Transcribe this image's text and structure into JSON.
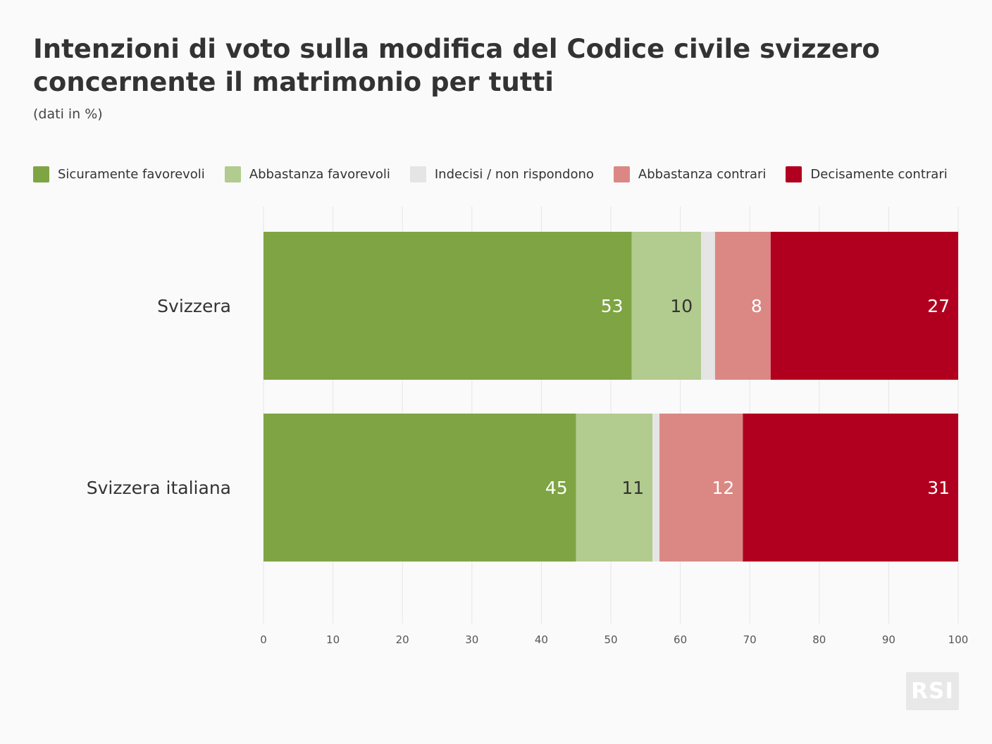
{
  "chart_data": {
    "type": "bar",
    "orientation": "horizontal",
    "stacked": true,
    "title": "Intenzioni di voto sulla modifica del Codice civile svizzero concernente il matrimonio per tutti",
    "subtitle": "(dati in %)",
    "categories": [
      "Svizzera",
      "Svizzera italiana"
    ],
    "series": [
      {
        "name": "Sicuramente favorevoli",
        "color": "#7fa443",
        "label_color": "#ffffff",
        "values": [
          53,
          45
        ],
        "labels": [
          "53",
          "45"
        ]
      },
      {
        "name": "Abbastanza favorevoli",
        "color": "#b2cb8e",
        "label_color": "#333333",
        "values": [
          10,
          11
        ],
        "labels": [
          "10",
          "11"
        ]
      },
      {
        "name": "Indecisi / non rispondono",
        "color": "#e5e5e5",
        "label_color": "#333333",
        "values": [
          2,
          1
        ],
        "labels": [
          "",
          ""
        ]
      },
      {
        "name": "Abbastanza contrari",
        "color": "#db8884",
        "label_color": "#ffffff",
        "values": [
          8,
          12
        ],
        "labels": [
          "8",
          "12"
        ]
      },
      {
        "name": "Decisamente contrari",
        "color": "#b1001f",
        "label_color": "#ffffff",
        "values": [
          27,
          31
        ],
        "labels": [
          "27",
          "31"
        ]
      }
    ],
    "xlim": [
      0,
      100
    ],
    "xticks": [
      0,
      10,
      20,
      30,
      40,
      50,
      60,
      70,
      80,
      90,
      100
    ],
    "grid": true,
    "legend_position": "top"
  },
  "logo": {
    "text": "RSI"
  }
}
